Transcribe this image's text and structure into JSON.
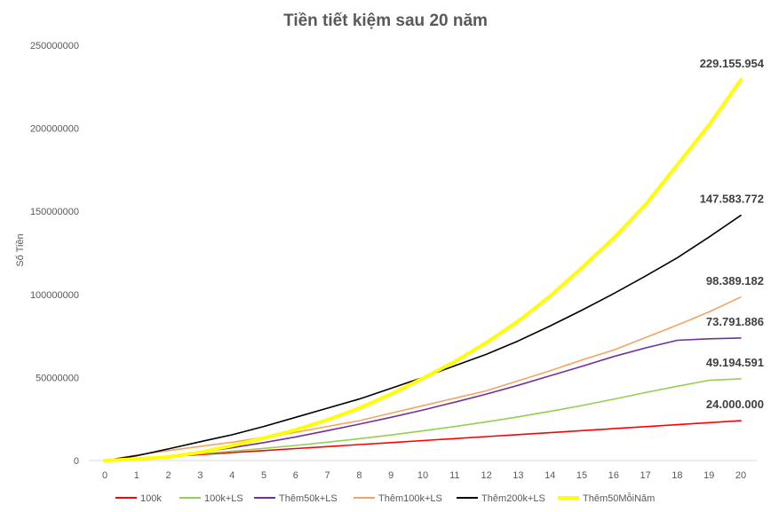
{
  "chart_data": {
    "type": "line",
    "title": "Tiền tiết kiệm sau 20 năm",
    "ylabel": "Số Tiền",
    "xlabel": "",
    "ylim": [
      0,
      250000000
    ],
    "yticks": [
      "0",
      "50000000",
      "100000000",
      "150000000",
      "200000000",
      "250000000"
    ],
    "x": [
      0,
      1,
      2,
      3,
      4,
      5,
      6,
      7,
      8,
      9,
      10,
      11,
      12,
      13,
      14,
      15,
      16,
      17,
      18,
      19,
      20
    ],
    "legend_position": "bottom",
    "grid": false,
    "series": [
      {
        "name": "100k",
        "color": "#ff0000",
        "width": 1.6,
        "values": [
          0,
          1200000,
          2400000,
          3600000,
          4800000,
          6000000,
          7200000,
          8400000,
          9600000,
          10800000,
          12000000,
          13200000,
          14400000,
          15600000,
          16800000,
          18000000,
          19200000,
          20400000,
          21600000,
          22800000,
          24000000
        ],
        "label": "24.000.000"
      },
      {
        "name": "100k+LS",
        "color": "#92d050",
        "width": 1.6,
        "values": [
          0,
          1224000,
          2617000,
          4072000,
          5627000,
          7300000,
          9100000,
          11050000,
          13150000,
          15400000,
          17850000,
          20450000,
          23300000,
          26300000,
          29600000,
          33100000,
          36900000,
          40900000,
          44700000,
          48300000,
          49194591
        ],
        "label": "49.194.591"
      },
      {
        "name": "Thêm50k+LS",
        "color": "#7030a0",
        "width": 1.6,
        "values": [
          0,
          900000,
          2600000,
          4900000,
          7700000,
          10800000,
          14200000,
          18000000,
          21900000,
          26000000,
          30400000,
          35100000,
          40000000,
          45300000,
          51000000,
          56700000,
          62600000,
          67800000,
          72400000,
          73300000,
          73791886
        ],
        "label": "73.791.886"
      },
      {
        "name": "Thêm100k+LS",
        "color": "#f4a460",
        "width": 1.6,
        "values": [
          0,
          3300000,
          6000000,
          8500000,
          11000000,
          14000000,
          17000000,
          20500000,
          24000000,
          28500000,
          33000000,
          37500000,
          42000000,
          48000000,
          54000000,
          60500000,
          66500000,
          74000000,
          81500000,
          89500000,
          98389182
        ],
        "label": "98.389.182"
      },
      {
        "name": "Thêm200k+LS",
        "color": "#000000",
        "width": 1.6,
        "values": [
          0,
          2900000,
          7000000,
          11300000,
          15500000,
          20500000,
          26000000,
          31500000,
          37000000,
          43500000,
          50000000,
          57000000,
          64000000,
          72000000,
          81000000,
          90500000,
          100500000,
          111000000,
          122000000,
          134500000,
          147583772
        ],
        "label": "147.583.772"
      },
      {
        "name": "Thêm50MỗiNăm",
        "color": "#ffff00",
        "width": 4,
        "values": [
          0,
          900000,
          2100000,
          5000000,
          9000000,
          13500000,
          18500000,
          24500000,
          31500000,
          40000000,
          49500000,
          59500000,
          71000000,
          84000000,
          99000000,
          116000000,
          134000000,
          154000000,
          178000000,
          202000000,
          229155954
        ],
        "label": "229.155.954"
      }
    ]
  }
}
